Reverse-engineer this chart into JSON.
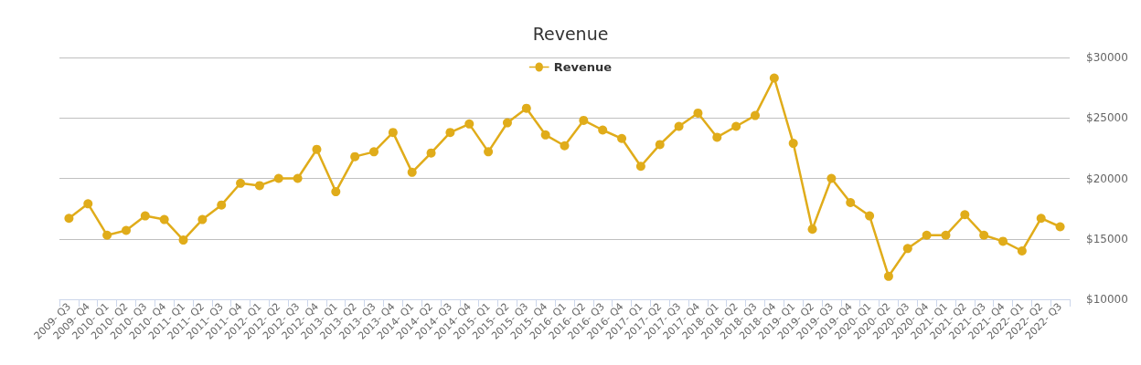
{
  "chart_data": {
    "type": "line",
    "title": "Revenue",
    "categories": [
      "2009- Q3",
      "2009- Q4",
      "2010- Q1",
      "2010- Q2",
      "2010- Q3",
      "2010- Q4",
      "2011- Q1",
      "2011- Q2",
      "2011- Q3",
      "2011- Q4",
      "2012- Q1",
      "2012- Q2",
      "2012- Q3",
      "2012- Q4",
      "2013- Q1",
      "2013- Q2",
      "2013- Q3",
      "2013- Q4",
      "2014- Q1",
      "2014- Q2",
      "2014- Q3",
      "2014- Q4",
      "2015- Q1",
      "2015- Q2",
      "2015- Q3",
      "2015- Q4",
      "2016- Q1",
      "2016- Q2",
      "2016- Q3",
      "2016- Q4",
      "2017- Q1",
      "2017- Q2",
      "2017- Q3",
      "2017- Q4",
      "2018- Q1",
      "2018- Q2",
      "2018- Q3",
      "2018- Q4",
      "2019- Q1",
      "2019- Q2",
      "2019- Q3",
      "2019- Q4",
      "2020- Q1",
      "2020- Q2",
      "2020- Q3",
      "2020- Q4",
      "2021- Q1",
      "2021- Q2",
      "2021- Q3",
      "2021- Q4",
      "2022- Q1",
      "2022- Q2",
      "2022- Q3"
    ],
    "series": [
      {
        "name": "Revenue",
        "color": "#e0ac1a",
        "values": [
          16700,
          17900,
          15300,
          15700,
          16900,
          16600,
          14900,
          16600,
          17800,
          19600,
          19400,
          20000,
          20000,
          22400,
          18900,
          21800,
          22200,
          23800,
          20500,
          22100,
          23800,
          24500,
          22200,
          24600,
          25800,
          23600,
          22700,
          24800,
          24000,
          23300,
          21000,
          22800,
          24300,
          25400,
          23400,
          24300,
          25200,
          28300,
          22900,
          15800,
          20000,
          18000,
          16900,
          11900,
          14200,
          15300,
          15300,
          17000,
          15300,
          14800,
          14000,
          16700,
          16000
        ]
      }
    ],
    "ylim": [
      10000,
      30000
    ],
    "yticks": [
      {
        "value": 10000,
        "label": "$10000"
      },
      {
        "value": 15000,
        "label": "$15000"
      },
      {
        "value": 20000,
        "label": "$20000"
      },
      {
        "value": 25000,
        "label": "$25000"
      },
      {
        "value": 30000,
        "label": "$30000"
      }
    ],
    "grid": "y",
    "legend": "top",
    "marker": "circle",
    "line_style": "solid"
  }
}
